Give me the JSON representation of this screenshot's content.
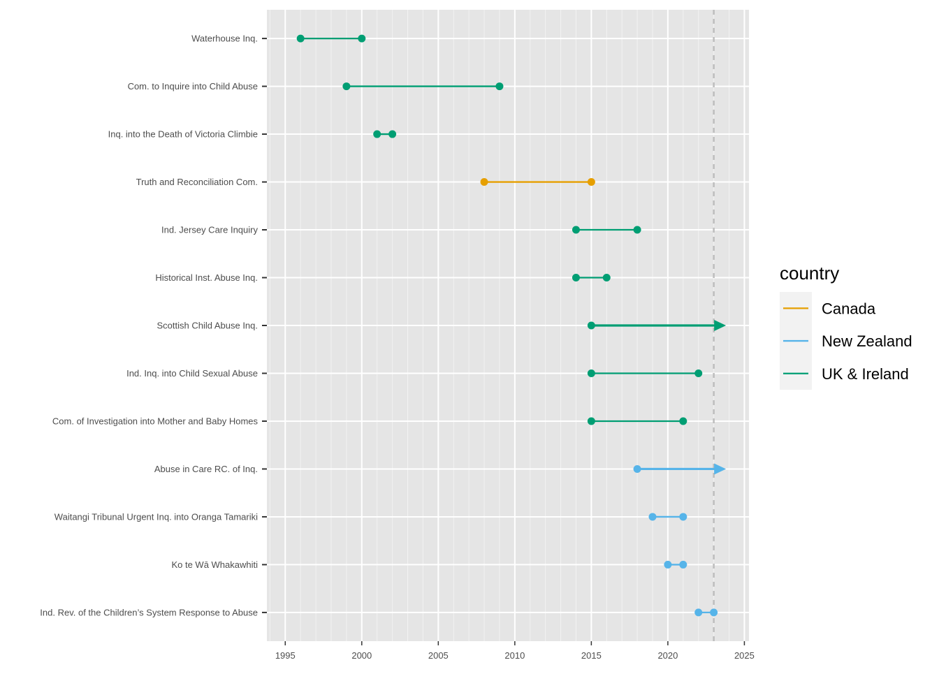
{
  "chart_data": {
    "type": "dumbbell",
    "title": "",
    "xlabel": "",
    "ylabel": "",
    "xlim": [
      1993.8,
      2025.3
    ],
    "x_ticks": [
      1995,
      2000,
      2005,
      2010,
      2015,
      2020,
      2025
    ],
    "x_tick_labels": [
      "1995",
      "2000",
      "2005",
      "2010",
      "2015",
      "2020",
      "2025"
    ],
    "reference_line": 2023,
    "grid": true,
    "legend": {
      "title": "country",
      "position": "right",
      "entries": [
        {
          "label": "Canada",
          "color": "#E69F00"
        },
        {
          "label": "New Zealand",
          "color": "#56B4E9"
        },
        {
          "label": "UK & Ireland",
          "color": "#009E73"
        }
      ]
    },
    "rows": [
      {
        "label": "Waterhouse Inq.",
        "country": "UK & Ireland",
        "start": 1996,
        "end": 2000,
        "ongoing": false
      },
      {
        "label": "Com. to Inquire into Child Abuse",
        "country": "UK & Ireland",
        "start": 1999,
        "end": 2009,
        "ongoing": false
      },
      {
        "label": "Inq. into the Death of Victoria Climbie",
        "country": "UK & Ireland",
        "start": 2001,
        "end": 2002,
        "ongoing": false
      },
      {
        "label": "Truth and Reconciliation Com.",
        "country": "Canada",
        "start": 2008,
        "end": 2015,
        "ongoing": false
      },
      {
        "label": "Ind. Jersey Care Inquiry",
        "country": "UK & Ireland",
        "start": 2014,
        "end": 2018,
        "ongoing": false
      },
      {
        "label": "Historical Inst. Abuse Inq.",
        "country": "UK & Ireland",
        "start": 2014,
        "end": 2016,
        "ongoing": false
      },
      {
        "label": "Scottish Child Abuse Inq.",
        "country": "UK & Ireland",
        "start": 2015,
        "end": 2023.8,
        "ongoing": true
      },
      {
        "label": "Ind. Inq. into Child Sexual Abuse",
        "country": "UK & Ireland",
        "start": 2015,
        "end": 2022,
        "ongoing": false
      },
      {
        "label": "Com. of Investigation into Mother and Baby Homes",
        "country": "UK & Ireland",
        "start": 2015,
        "end": 2021,
        "ongoing": false
      },
      {
        "label": "Abuse in Care RC. of Inq.",
        "country": "New Zealand",
        "start": 2018,
        "end": 2023.8,
        "ongoing": true
      },
      {
        "label": "Waitangi Tribunal Urgent Inq. into Oranga Tamariki",
        "country": "New Zealand",
        "start": 2019,
        "end": 2021,
        "ongoing": false
      },
      {
        "label": "Ko te Wā Whakawhiti",
        "country": "New Zealand",
        "start": 2020,
        "end": 2021,
        "ongoing": false
      },
      {
        "label": "Ind. Rev. of the Children’s System Response to Abuse",
        "country": "New Zealand",
        "start": 2022,
        "end": 2023,
        "ongoing": false
      }
    ]
  }
}
